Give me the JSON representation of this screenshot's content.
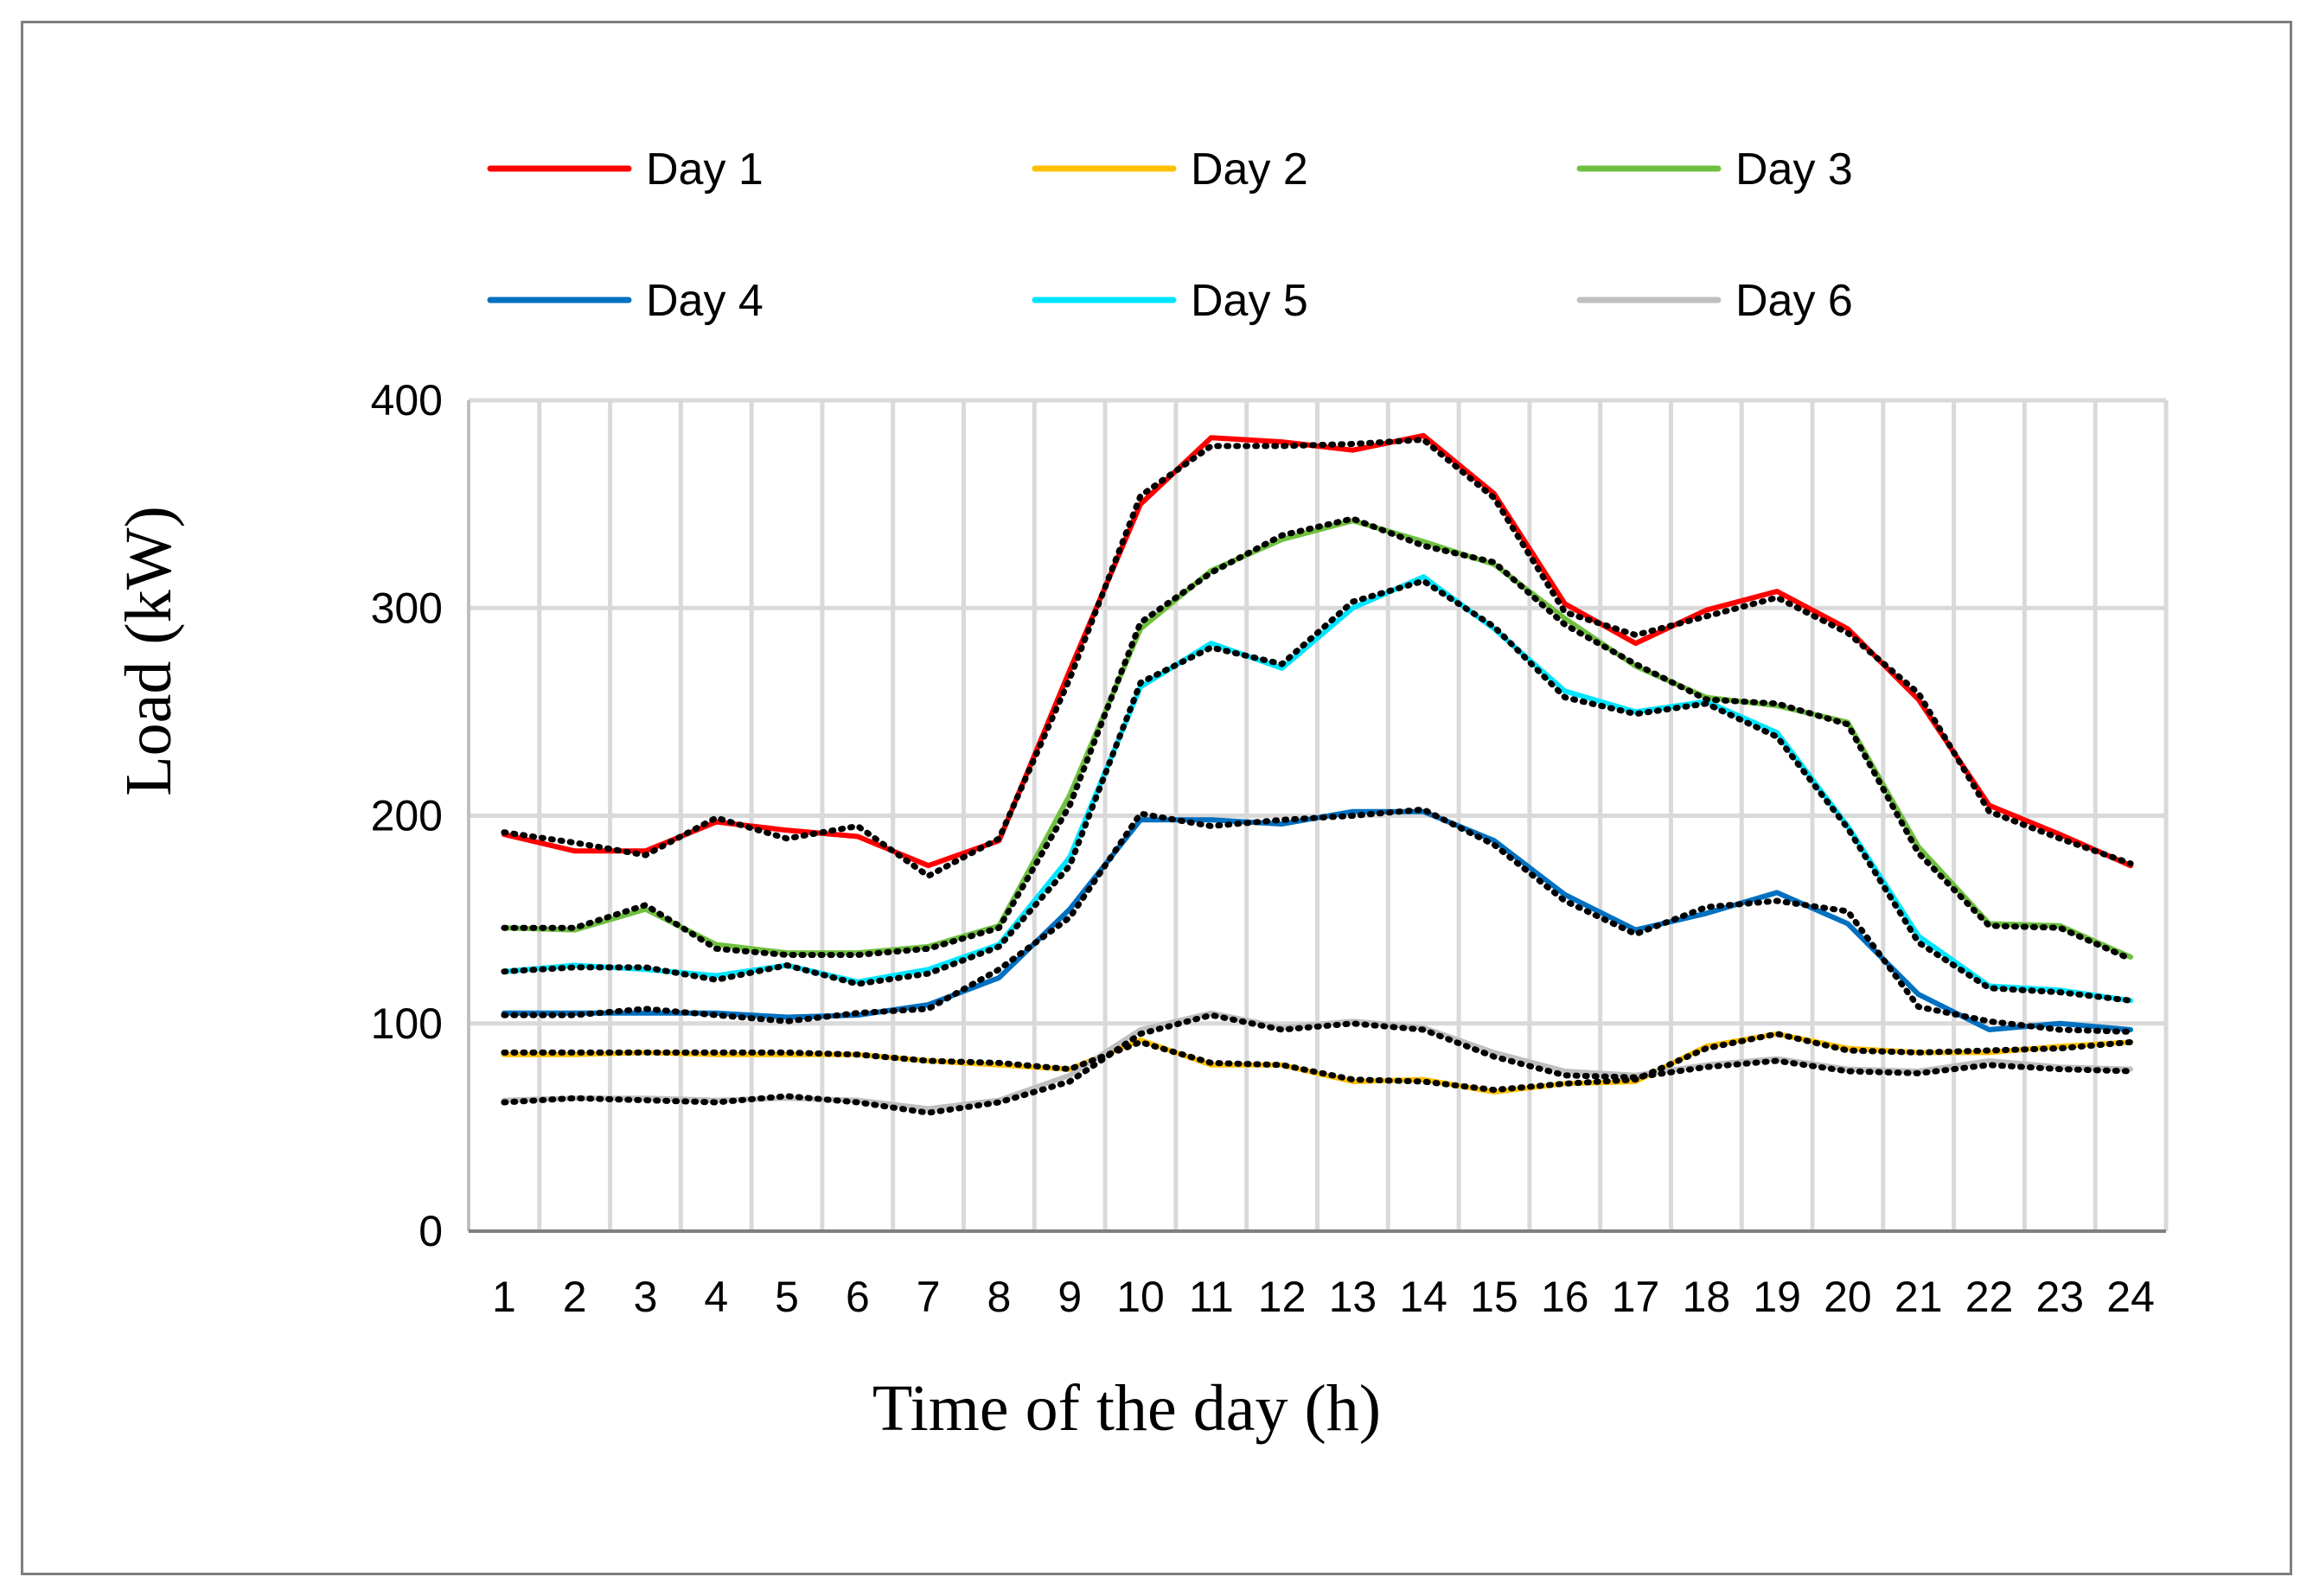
{
  "chart_data": {
    "type": "line",
    "title": "",
    "xlabel": "Time of the day (h)",
    "ylabel": "Load (kW)",
    "ylim": [
      0,
      400
    ],
    "yticks": [
      0,
      100,
      200,
      300,
      400
    ],
    "categories": [
      "1",
      "2",
      "3",
      "4",
      "5",
      "6",
      "7",
      "8",
      "9",
      "10",
      "11",
      "12",
      "13",
      "14",
      "15",
      "16",
      "17",
      "18",
      "19",
      "20",
      "21",
      "22",
      "23",
      "24"
    ],
    "grid": "vertical and horizontal, light gray",
    "legend_position": "top, 2 rows x 3 columns",
    "series": [
      {
        "name": "Day 1",
        "color": "#ff0000",
        "values": [
          191,
          183,
          183,
          197,
          193,
          190,
          176,
          188,
          270,
          350,
          382,
          380,
          376,
          383,
          355,
          302,
          283,
          299,
          308,
          290,
          256,
          205,
          191,
          176
        ]
      },
      {
        "name": "Day 2",
        "color": "#ffc000",
        "values": [
          85,
          85,
          86,
          85,
          85,
          85,
          82,
          80,
          78,
          92,
          80,
          80,
          72,
          73,
          67,
          71,
          72,
          89,
          95,
          88,
          86,
          86,
          89,
          91
        ]
      },
      {
        "name": "Day 3",
        "color": "#70c040",
        "values": [
          146,
          145,
          155,
          138,
          134,
          134,
          137,
          147,
          210,
          290,
          318,
          333,
          342,
          332,
          321,
          295,
          272,
          257,
          253,
          245,
          185,
          148,
          147,
          132
        ]
      },
      {
        "name": "Day 4",
        "color": "#0070c0",
        "values": [
          105,
          105,
          105,
          105,
          103,
          104,
          109,
          122,
          155,
          198,
          198,
          196,
          202,
          202,
          188,
          162,
          145,
          153,
          163,
          148,
          114,
          97,
          100,
          97
        ]
      },
      {
        "name": "Day 5",
        "color": "#00e5ff",
        "values": [
          125,
          128,
          126,
          123,
          128,
          120,
          126,
          138,
          180,
          262,
          283,
          271,
          300,
          315,
          290,
          260,
          250,
          255,
          240,
          195,
          142,
          118,
          116,
          111
        ]
      },
      {
        "name": "Day 6",
        "color": "#bfbfbf",
        "values": [
          63,
          64,
          64,
          63,
          64,
          63,
          59,
          63,
          75,
          97,
          105,
          98,
          101,
          98,
          86,
          77,
          75,
          80,
          83,
          78,
          77,
          82,
          79,
          78
        ]
      }
    ],
    "dotted_overlay": {
      "color": "#000000",
      "style": "dotted",
      "values": [
        [
          192,
          187,
          181,
          199,
          189,
          195,
          171,
          189,
          266,
          354,
          378,
          378,
          379,
          381,
          353,
          298,
          287,
          296,
          305,
          288,
          259,
          202,
          189,
          177
        ],
        [
          86,
          86,
          86,
          86,
          86,
          85,
          82,
          81,
          78,
          91,
          81,
          80,
          73,
          72,
          68,
          71,
          73,
          88,
          95,
          87,
          86,
          87,
          88,
          91
        ],
        [
          146,
          146,
          157,
          136,
          133,
          133,
          136,
          146,
          205,
          293,
          317,
          335,
          343,
          330,
          322,
          292,
          273,
          256,
          254,
          244,
          182,
          147,
          146,
          131
        ],
        [
          104,
          104,
          107,
          104,
          101,
          105,
          107,
          126,
          151,
          201,
          195,
          198,
          200,
          203,
          186,
          159,
          143,
          156,
          159,
          154,
          108,
          101,
          97,
          96
        ],
        [
          125,
          127,
          127,
          121,
          128,
          119,
          124,
          137,
          176,
          264,
          281,
          273,
          303,
          313,
          291,
          257,
          249,
          254,
          238,
          194,
          139,
          117,
          115,
          111
        ],
        [
          62,
          64,
          63,
          62,
          65,
          62,
          57,
          62,
          72,
          95,
          104,
          97,
          100,
          97,
          84,
          75,
          74,
          79,
          82,
          77,
          76,
          80,
          78,
          77
        ]
      ]
    }
  }
}
